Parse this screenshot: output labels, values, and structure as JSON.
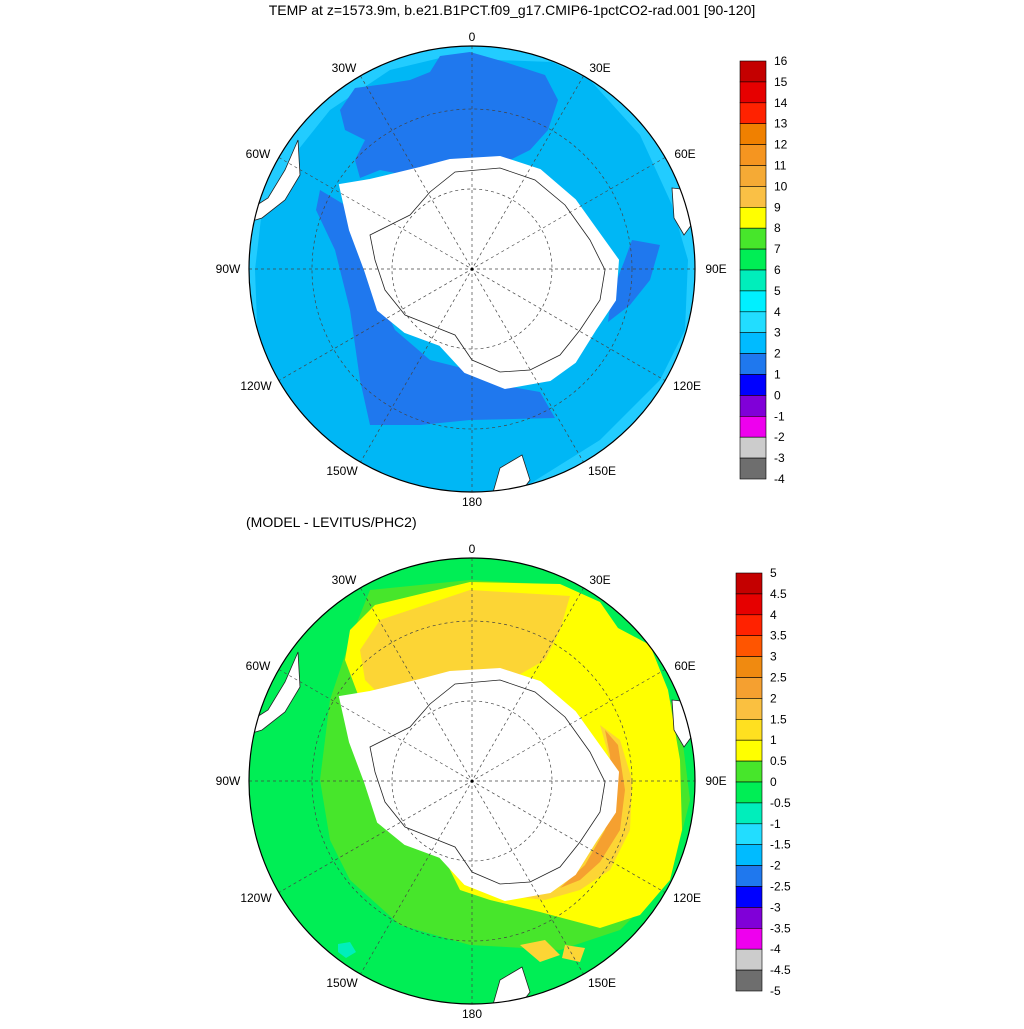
{
  "panels": [
    {
      "title": "TEMP at z=1573.9m, b.e21.B1PCT.f09_g17.CMIP6-1pctCO2-rad.001 [90-120]",
      "lon_labels": [
        "0",
        "30E",
        "60E",
        "90E",
        "120E",
        "150E",
        "180",
        "150W",
        "120W",
        "90W",
        "60W",
        "30W"
      ],
      "colorbar": {
        "labels": [
          "16",
          "15",
          "14",
          "13",
          "12",
          "11",
          "10",
          "9",
          "8",
          "7",
          "6",
          "5",
          "4",
          "3",
          "2",
          "1",
          "0",
          "-1",
          "-2",
          "-3",
          "-4"
        ],
        "colors": [
          "#c40000",
          "#e60000",
          "#ff2200",
          "#f08000",
          "#f59520",
          "#f5aa35",
          "#fac045",
          "#ffff00",
          "#47e62b",
          "#00ee55",
          "#00eebb",
          "#00f0ff",
          "#22ddff",
          "#00bbff",
          "#1f78ee",
          "#0000ff",
          "#8000d8",
          "#ee00ee",
          "#cccccc",
          "#6e6e6e"
        ]
      },
      "regions": {
        "outer_shelf": "#22ccff",
        "deep_ocean": "#00b7f5",
        "cold_basins": "#1f78ee"
      }
    },
    {
      "title": "(MODEL - LEVITUS/PHC2)",
      "lon_labels": [
        "0",
        "30E",
        "60E",
        "90E",
        "120E",
        "150E",
        "180",
        "150W",
        "120W",
        "90W",
        "60W",
        "30W"
      ],
      "colorbar": {
        "labels": [
          "5",
          "4.5",
          "4",
          "3.5",
          "3",
          "2.5",
          "2",
          "1.5",
          "1",
          "0.5",
          "0",
          "-0.5",
          "-1",
          "-1.5",
          "-2",
          "-2.5",
          "-3",
          "-3.5",
          "-4",
          "-4.5",
          "-5"
        ],
        "colors": [
          "#c40000",
          "#e60000",
          "#ff2200",
          "#ff5500",
          "#f08a10",
          "#f5a030",
          "#fac040",
          "#ffe020",
          "#ffff00",
          "#47e62b",
          "#00ee55",
          "#00eebb",
          "#22ddff",
          "#00bbff",
          "#1f78ee",
          "#0000ff",
          "#8000d8",
          "#ee00ee",
          "#cccccc",
          "#6e6e6e"
        ]
      },
      "regions": {
        "outer": "#00ee55",
        "mid": "#47e62b",
        "warm": "#ffff00",
        "warmer": "#fcd535",
        "warmest": "#f5a030",
        "cool_spot": "#00eebb"
      }
    }
  ]
}
